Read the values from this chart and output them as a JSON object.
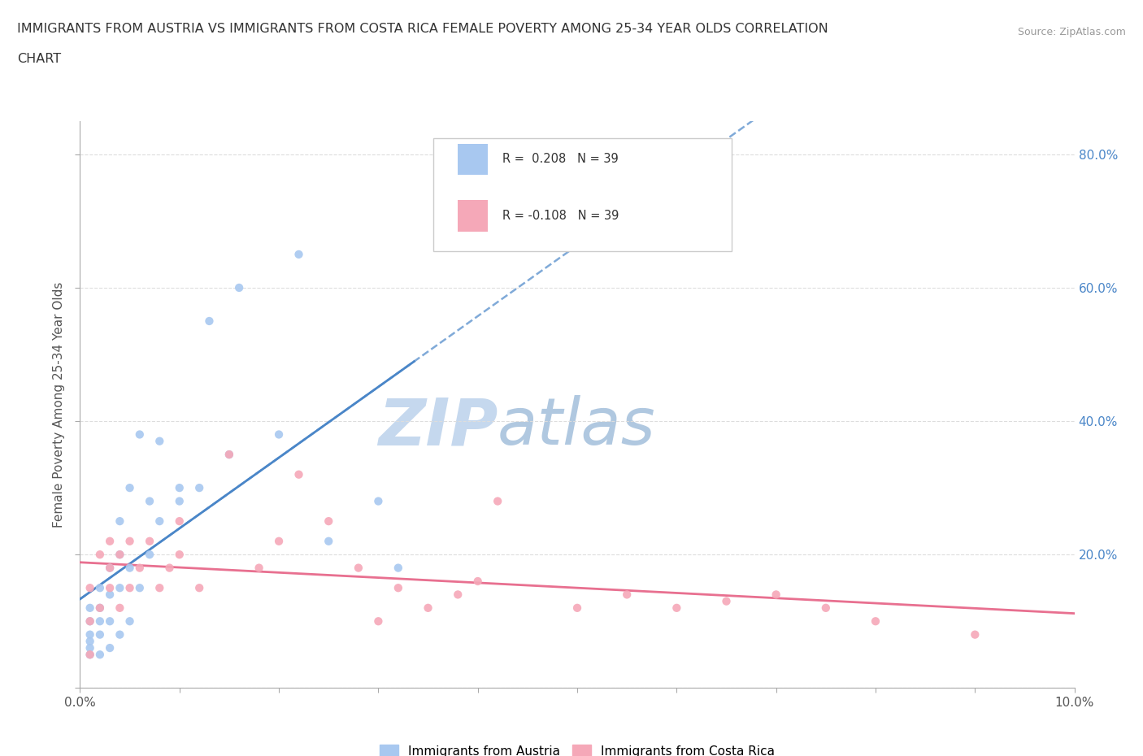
{
  "title_line1": "IMMIGRANTS FROM AUSTRIA VS IMMIGRANTS FROM COSTA RICA FEMALE POVERTY AMONG 25-34 YEAR OLDS CORRELATION",
  "title_line2": "CHART",
  "source": "Source: ZipAtlas.com",
  "ylabel": "Female Poverty Among 25-34 Year Olds",
  "xlim": [
    0.0,
    0.1
  ],
  "ylim": [
    0.0,
    0.85
  ],
  "xticks": [
    0.0,
    0.01,
    0.02,
    0.03,
    0.04,
    0.05,
    0.06,
    0.07,
    0.08,
    0.09,
    0.1
  ],
  "xticklabels": [
    "0.0%",
    "",
    "",
    "",
    "",
    "",
    "",
    "",
    "",
    "",
    "10.0%"
  ],
  "yticks": [
    0.0,
    0.2,
    0.4,
    0.6,
    0.8
  ],
  "yticklabels_right": [
    "",
    "20.0%",
    "40.0%",
    "60.0%",
    "80.0%"
  ],
  "austria_color": "#a8c8f0",
  "costa_rica_color": "#f5a8b8",
  "trend_austria_color": "#4a86c8",
  "trend_costa_rica_color": "#e87090",
  "watermark_color_zip": "#c8d8ec",
  "watermark_color_atlas": "#b8c8dc",
  "R_austria": 0.208,
  "N_austria": 39,
  "R_costa_rica": -0.108,
  "N_costa_rica": 39,
  "austria_x": [
    0.001,
    0.001,
    0.001,
    0.001,
    0.001,
    0.001,
    0.002,
    0.002,
    0.002,
    0.002,
    0.002,
    0.003,
    0.003,
    0.003,
    0.003,
    0.004,
    0.004,
    0.004,
    0.004,
    0.005,
    0.005,
    0.005,
    0.006,
    0.006,
    0.007,
    0.007,
    0.008,
    0.008,
    0.01,
    0.01,
    0.012,
    0.013,
    0.015,
    0.016,
    0.02,
    0.022,
    0.025,
    0.03,
    0.032
  ],
  "austria_y": [
    0.05,
    0.06,
    0.07,
    0.08,
    0.1,
    0.12,
    0.05,
    0.08,
    0.1,
    0.12,
    0.15,
    0.06,
    0.1,
    0.14,
    0.18,
    0.08,
    0.15,
    0.2,
    0.25,
    0.1,
    0.18,
    0.3,
    0.15,
    0.38,
    0.2,
    0.28,
    0.25,
    0.37,
    0.28,
    0.3,
    0.3,
    0.55,
    0.35,
    0.6,
    0.38,
    0.65,
    0.22,
    0.28,
    0.18
  ],
  "costa_rica_x": [
    0.001,
    0.001,
    0.001,
    0.002,
    0.002,
    0.003,
    0.003,
    0.003,
    0.004,
    0.004,
    0.005,
    0.005,
    0.006,
    0.007,
    0.008,
    0.009,
    0.01,
    0.01,
    0.012,
    0.015,
    0.018,
    0.02,
    0.022,
    0.025,
    0.028,
    0.03,
    0.032,
    0.035,
    0.038,
    0.04,
    0.042,
    0.05,
    0.055,
    0.06,
    0.065,
    0.07,
    0.075,
    0.08,
    0.09
  ],
  "costa_rica_y": [
    0.05,
    0.1,
    0.15,
    0.12,
    0.2,
    0.15,
    0.18,
    0.22,
    0.12,
    0.2,
    0.15,
    0.22,
    0.18,
    0.22,
    0.15,
    0.18,
    0.2,
    0.25,
    0.15,
    0.35,
    0.18,
    0.22,
    0.32,
    0.25,
    0.18,
    0.1,
    0.15,
    0.12,
    0.14,
    0.16,
    0.28,
    0.12,
    0.14,
    0.12,
    0.13,
    0.14,
    0.12,
    0.1,
    0.08
  ],
  "background_color": "#ffffff",
  "grid_color": "#dddddd"
}
